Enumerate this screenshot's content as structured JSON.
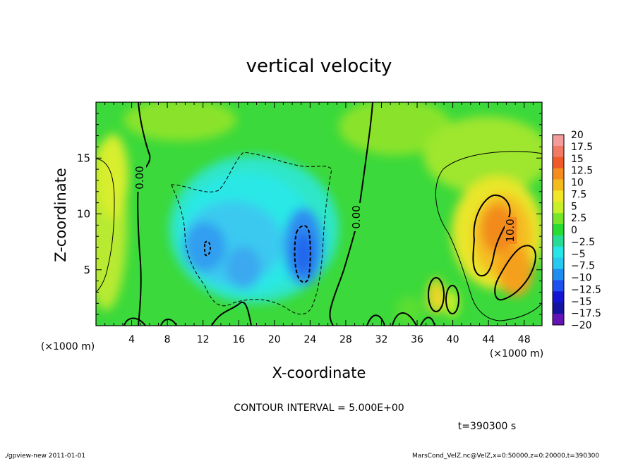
{
  "chart_data": {
    "type": "heatmap",
    "title": "vertical velocity",
    "xlabel": "X-coordinate",
    "ylabel": "Z-coordinate",
    "x_unit": "(×1000 m)",
    "z_unit": "(×1000 m)",
    "xlim": [
      0,
      50
    ],
    "ylim": [
      0,
      20
    ],
    "x_ticks": [
      4,
      8,
      12,
      16,
      20,
      24,
      28,
      32,
      36,
      40,
      44,
      48
    ],
    "y_ticks": [
      5,
      10,
      15
    ],
    "colorbar": {
      "levels": [
        20,
        17.5,
        15,
        12.5,
        10,
        7.5,
        5,
        2.5,
        0,
        -2.5,
        -5,
        -7.5,
        -10,
        -12.5,
        -15,
        -17.5,
        -20
      ],
      "labels": [
        "20",
        "17.5",
        "15",
        "12.5",
        "10",
        "7.5",
        "5",
        "2.5",
        "0",
        "−2.5",
        "−5",
        "−7.5",
        "−10",
        "−12.5",
        "−15",
        "−17.5",
        "−20"
      ],
      "colors": [
        "#f49b9b",
        "#f07a64",
        "#f05a28",
        "#f58c1e",
        "#f5bb1e",
        "#f2e628",
        "#c8f028",
        "#78e628",
        "#28dc32",
        "#28dc96",
        "#28e6e6",
        "#28c8f0",
        "#1e8cf0",
        "#1e4ff0",
        "#1414d2",
        "#1414a0",
        "#6414b4"
      ]
    },
    "contour_labels": [
      {
        "x": 4.2,
        "z": 13.2,
        "text": "0.00"
      },
      {
        "x": 29.8,
        "z": 8.7,
        "text": "0.00"
      },
      {
        "x": 46.2,
        "z": 8.5,
        "text": "10.0"
      }
    ],
    "contour_interval_label": "CONTOUR INTERVAL = 5.000E+00",
    "time_label": "t=390300 s"
  },
  "footer": {
    "left": "./gpview-new   2011-01-01",
    "right": "MarsCond_VelZ.nc@VelZ,x=0:50000,z=0:20000,t=390300"
  }
}
